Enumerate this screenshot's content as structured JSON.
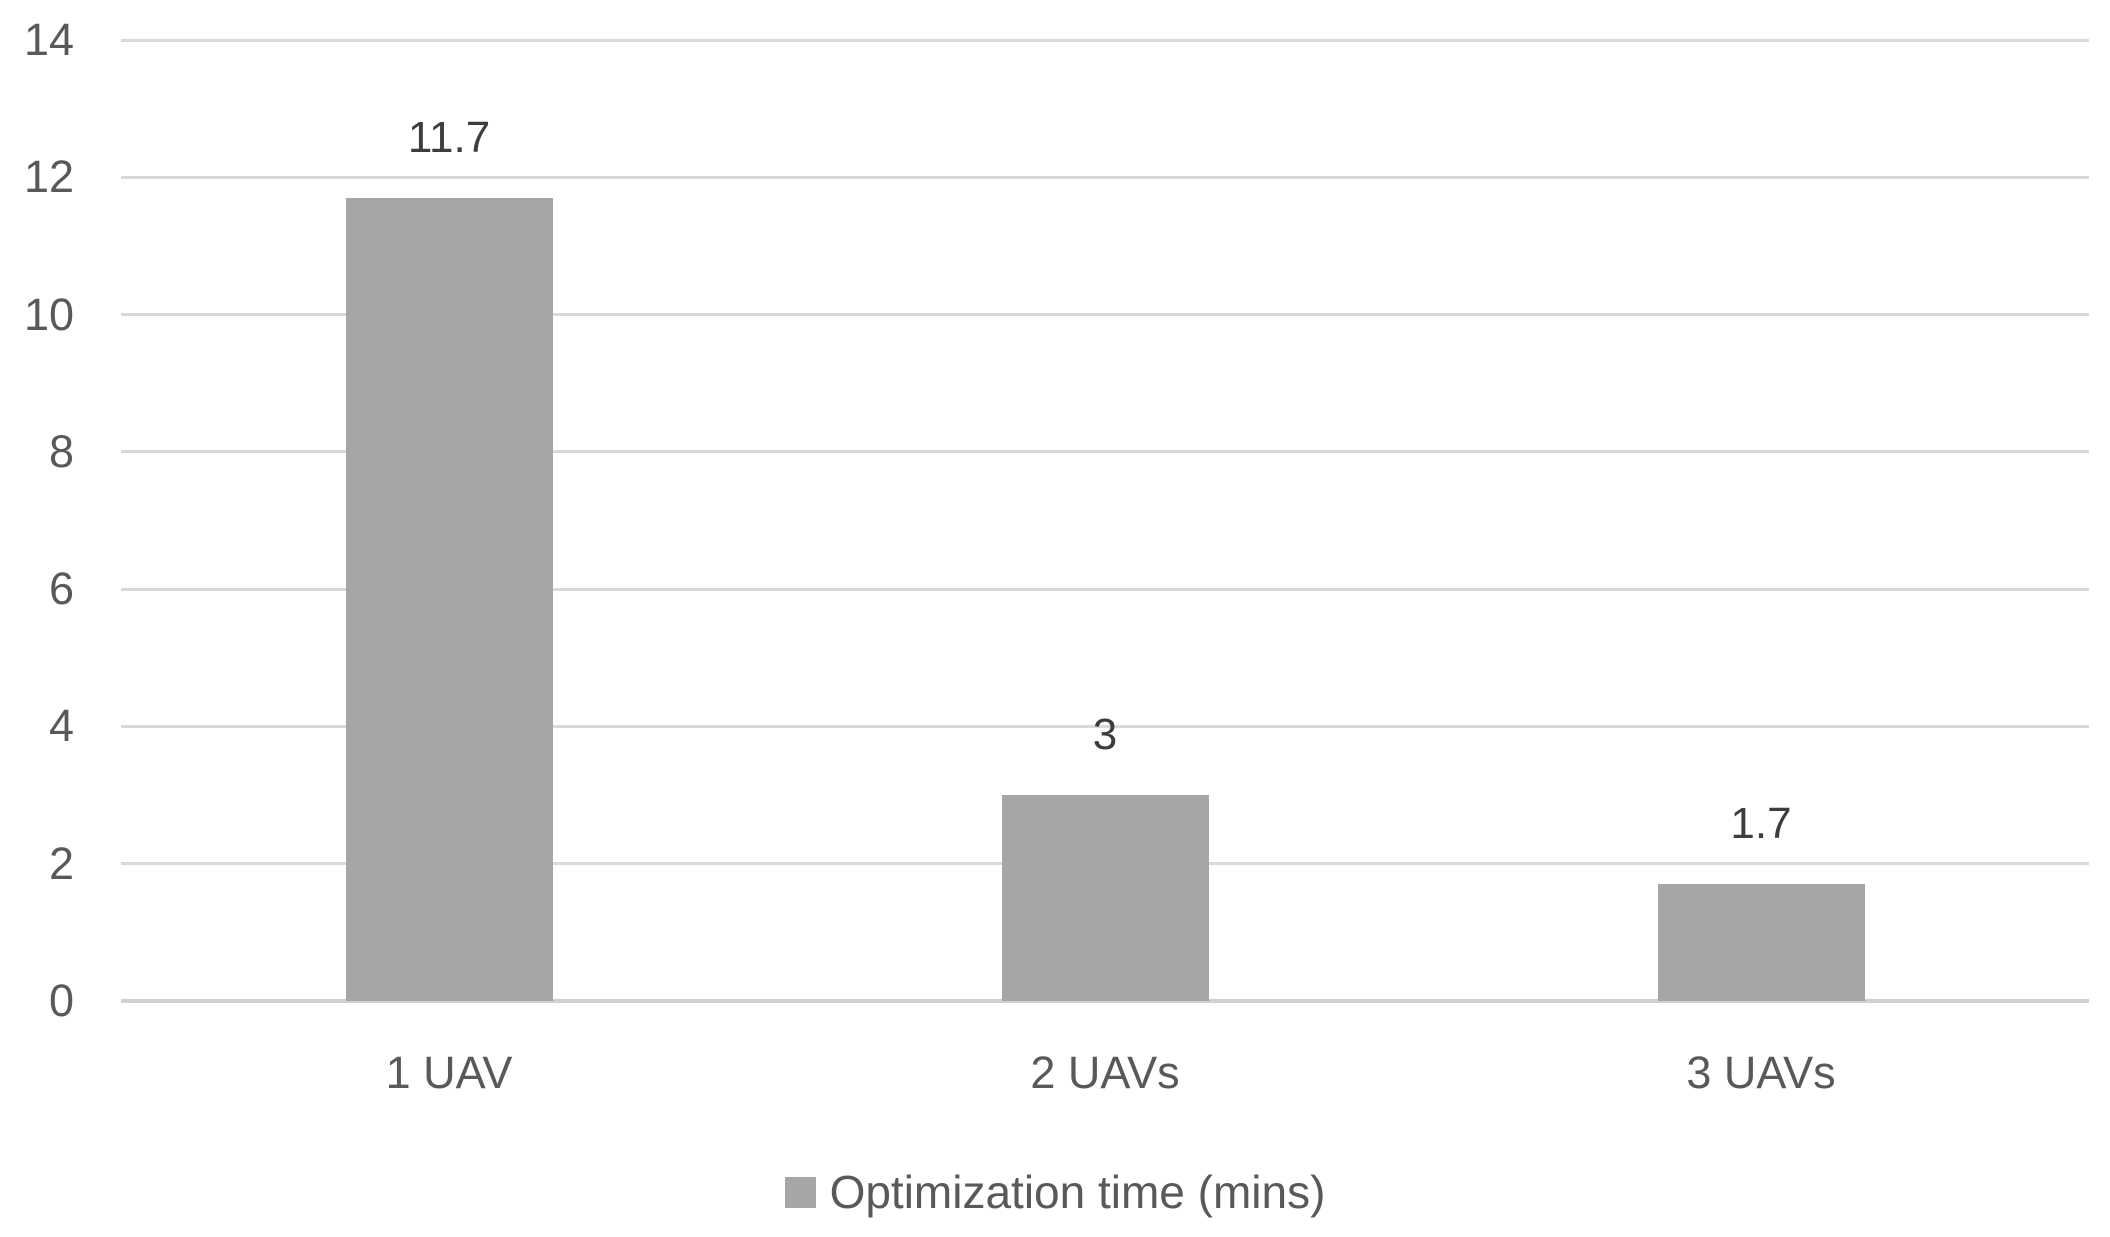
{
  "chart_data": {
    "type": "bar",
    "categories": [
      "1 UAV",
      "2 UAVs",
      "3 UAVs"
    ],
    "values": [
      11.7,
      3,
      1.7
    ],
    "value_labels": [
      "11.7",
      "3",
      "1.7"
    ],
    "title": "",
    "xlabel": "",
    "ylabel": "",
    "ylim": [
      0,
      14
    ],
    "yticks": [
      0,
      2,
      4,
      6,
      8,
      10,
      12,
      14
    ],
    "grid": true,
    "legend": {
      "position": "bottom",
      "label": "Optimization time (mins)"
    },
    "colors": {
      "bar": "#a6a6a6",
      "gridline": "#d9d9d9",
      "axis_line": "#d0d0d0",
      "tick_label": "#595959",
      "category_label": "#595959",
      "value_label": "#3d3d3d",
      "legend_text": "#595959",
      "legend_swatch": "#a6a6a6",
      "background": "#ffffff"
    }
  }
}
